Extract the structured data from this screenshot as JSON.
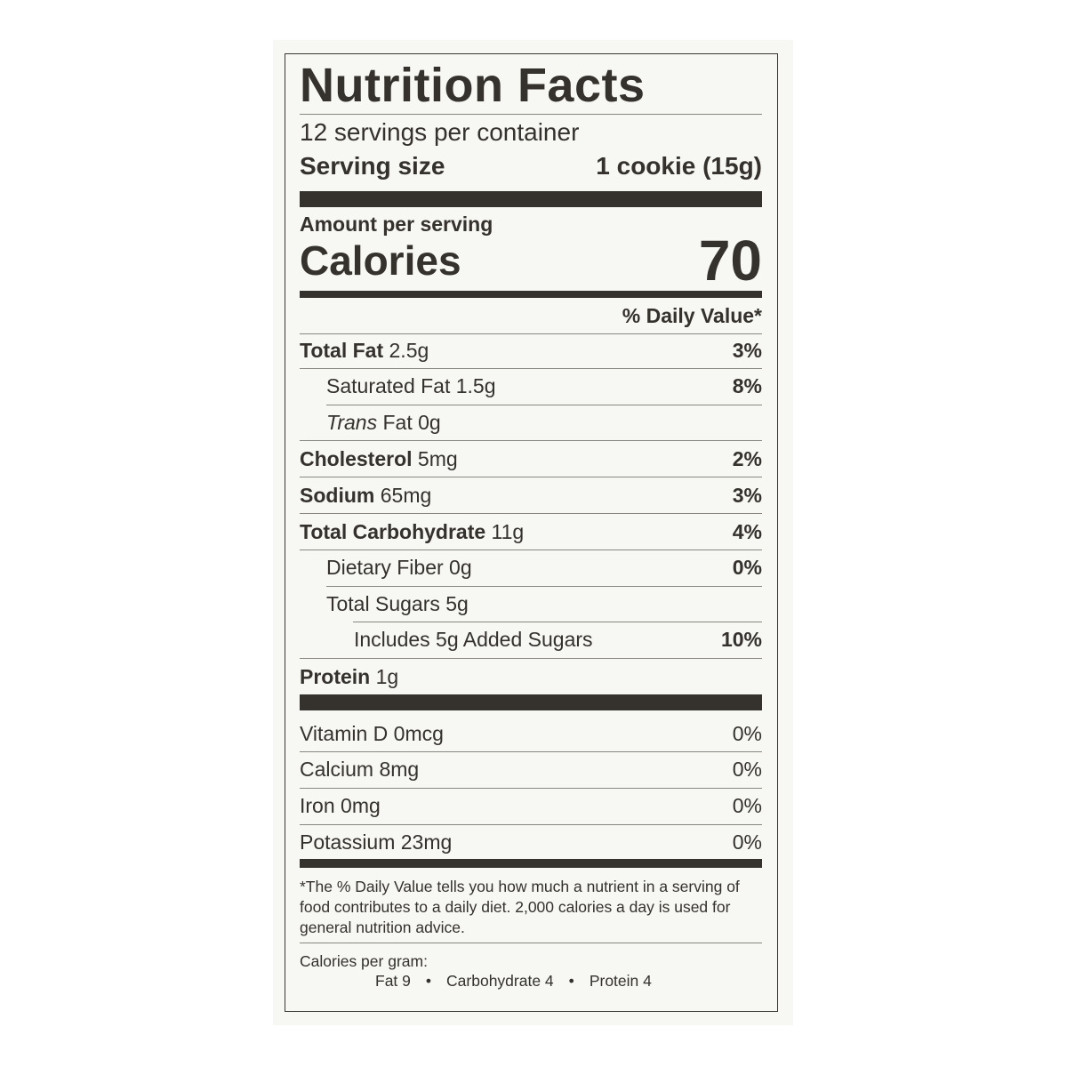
{
  "title": "Nutrition Facts",
  "servings_per_container": "12 servings per container",
  "serving_size": {
    "label": "Serving size",
    "value": "1 cookie (15g)"
  },
  "amount_per_serving": "Amount per serving",
  "calories": {
    "label": "Calories",
    "value": "70"
  },
  "daily_value_header": "% Daily Value*",
  "nutrients": [
    {
      "name": "Total Fat",
      "amount": "2.5g",
      "dv": "3%"
    },
    {
      "name": "Saturated Fat",
      "amount": "1.5g",
      "dv": "8%"
    },
    {
      "name": "Trans",
      "name_rest": "Fat",
      "amount": "0g",
      "dv": ""
    },
    {
      "name": "Cholesterol",
      "amount": "5mg",
      "dv": "2%"
    },
    {
      "name": "Sodium",
      "amount": "65mg",
      "dv": "3%"
    },
    {
      "name": "Total Carbohydrate",
      "amount": "11g",
      "dv": "4%"
    },
    {
      "name": "Dietary Fiber",
      "amount": "0g",
      "dv": "0%"
    },
    {
      "name": "Total Sugars",
      "amount": "5g",
      "dv": ""
    },
    {
      "name": "Includes 5g Added Sugars",
      "amount": "",
      "dv": "10%"
    },
    {
      "name": "Protein",
      "amount": "1g",
      "dv": ""
    }
  ],
  "vitamins": [
    {
      "text": "Vitamin D 0mcg",
      "dv": "0%"
    },
    {
      "text": "Calcium 8mg",
      "dv": "0%"
    },
    {
      "text": "Iron 0mg",
      "dv": "0%"
    },
    {
      "text": "Potassium 23mg",
      "dv": "0%"
    }
  ],
  "footnote": "*The % Daily Value tells you how much a nutrient in a serving of food contributes to a daily diet. 2,000 calories a day is used for general nutrition advice.",
  "calories_per_gram": {
    "label": "Calories per gram:",
    "fat": "Fat 9",
    "carbohydrate": "Carbohydrate 4",
    "protein": "Protein 4",
    "separator": "•"
  }
}
